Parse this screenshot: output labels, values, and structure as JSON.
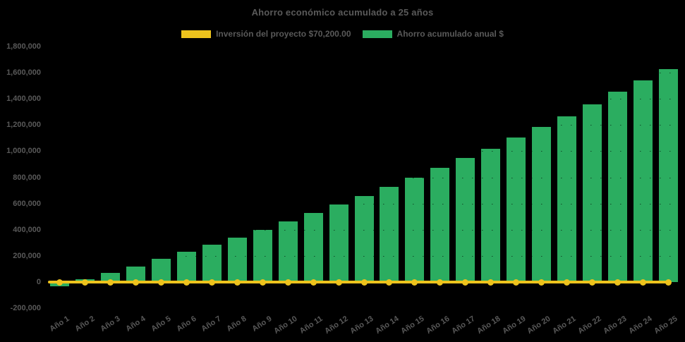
{
  "background": "#000000",
  "text_color": "#595959",
  "chart_data": {
    "type": "bar",
    "title": "Ahorro económico acumulado a 25 años",
    "legend_position": "top",
    "grid": "faint dotted horizontal lines at each 200,000 step",
    "categories": [
      "Año 1",
      "Año 2",
      "Año 3",
      "Año 4",
      "Año 5",
      "Año 6",
      "Año 7",
      "Año 8",
      "Año 9",
      "Año 10",
      "Año 11",
      "Año 12",
      "Año 13",
      "Año 14",
      "Año 15",
      "Año 16",
      "Año 17",
      "Año 18",
      "Año 19",
      "Año 20",
      "Año 21",
      "Año 22",
      "Año 23",
      "Año 24",
      "Año 25"
    ],
    "series": [
      {
        "name": "Inversión del proyecto $70,200.00",
        "type": "line",
        "color": "#edc31d",
        "marker": "circle",
        "investment_value": 70200,
        "plotted_at_value": 0
      },
      {
        "name": "Ahorro acumulado anual $",
        "type": "bar",
        "color": "#2bad60",
        "values": [
          -32000,
          23000,
          70000,
          121000,
          176000,
          232000,
          287000,
          341000,
          399000,
          462000,
          530000,
          595000,
          656000,
          730000,
          797000,
          871000,
          947000,
          1019000,
          1103000,
          1184000,
          1265000,
          1357000,
          1454000,
          1544000,
          1628000
        ]
      }
    ],
    "y_axis": {
      "min": -200000,
      "max": 1800000,
      "step": 200000,
      "tick_labels": [
        "-200,000",
        "0",
        "200,000",
        "400,000",
        "600,000",
        "800,000",
        "1,000,000",
        "1,200,000",
        "1,400,000",
        "1,600,000",
        "1,800,000"
      ]
    },
    "x_axis": {
      "label_rotation_deg": -33
    }
  }
}
